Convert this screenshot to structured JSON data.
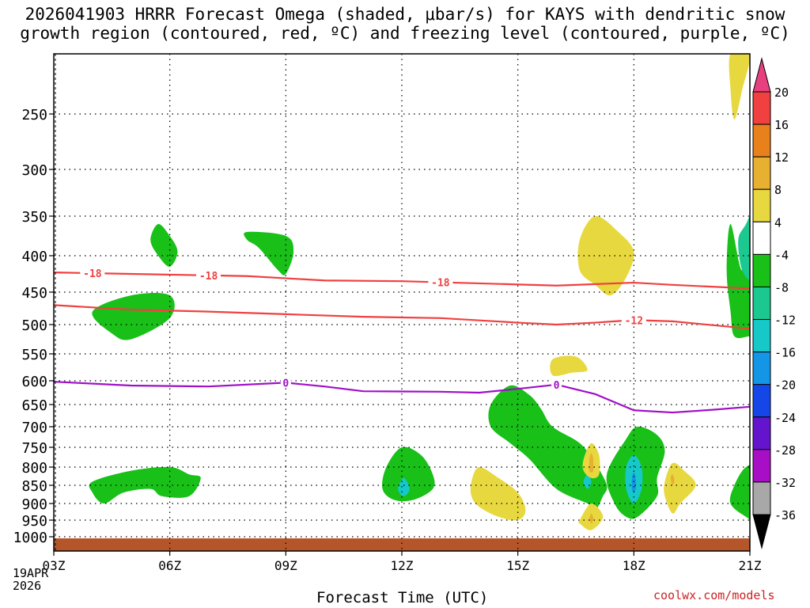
{
  "chart_data": {
    "type": "contour-timeseries",
    "title_line1": "2026041903 HRRR Forecast Omega (shaded, μbar/s) for KAYS with dendritic snow",
    "title_line2": "growth region (contoured, red, ºC) and freezing level (contoured, purple, ºC)",
    "xlabel": "Forecast Time (UTC)",
    "date_label": [
      "19APR",
      "2026"
    ],
    "credit": "coolwx.com/models",
    "x_ticks": [
      {
        "label": "03Z",
        "hour": 0
      },
      {
        "label": "06Z",
        "hour": 3
      },
      {
        "label": "09Z",
        "hour": 6
      },
      {
        "label": "12Z",
        "hour": 9
      },
      {
        "label": "15Z",
        "hour": 12
      },
      {
        "label": "18Z",
        "hour": 15
      },
      {
        "label": "21Z",
        "hour": 18
      }
    ],
    "y_ticks": [
      250,
      300,
      350,
      400,
      450,
      500,
      550,
      600,
      650,
      700,
      750,
      800,
      850,
      900,
      950,
      1000
    ],
    "ylim_hpa": [
      200,
      1030
    ],
    "colorbar": {
      "labels": [
        "20",
        "16",
        "12",
        "8",
        "4",
        "-4",
        "-8",
        "-12",
        "-16",
        "-20",
        "-24",
        "-28",
        "-32",
        "-36"
      ],
      "colors": [
        "#e8407e",
        "#f04040",
        "#e8801c",
        "#e8b030",
        "#e8d840",
        "#ffffff",
        "#18c018",
        "#1ac890",
        "#16c8c8",
        "#1496e6",
        "#1446e8",
        "#6414cc",
        "#a80ec6",
        "#a8a8a8",
        "#000000"
      ]
    },
    "contours": [
      {
        "name": "-18C",
        "color": "#f04040",
        "label": "-18",
        "points": [
          [
            0,
            423
          ],
          [
            2,
            425
          ],
          [
            5,
            428
          ],
          [
            7,
            434
          ],
          [
            9,
            435
          ],
          [
            11,
            438
          ],
          [
            13,
            441
          ],
          [
            15,
            437
          ],
          [
            16,
            440
          ],
          [
            18,
            445
          ]
        ],
        "label_positions": [
          1,
          4,
          10
        ]
      },
      {
        "name": "-12C",
        "color": "#f04040",
        "label": "-12",
        "points": [
          [
            0,
            470
          ],
          [
            2,
            477
          ],
          [
            4,
            480
          ],
          [
            6,
            484
          ],
          [
            8,
            488
          ],
          [
            10,
            490
          ],
          [
            12,
            497
          ],
          [
            13,
            500
          ],
          [
            14,
            497
          ],
          [
            15,
            493
          ],
          [
            16,
            495
          ],
          [
            18,
            507
          ]
        ],
        "label_positions": [
          15
        ]
      },
      {
        "name": "0C",
        "color": "#a010c8",
        "label": "0",
        "points": [
          [
            0,
            602
          ],
          [
            2,
            610
          ],
          [
            4,
            612
          ],
          [
            6,
            604
          ],
          [
            7,
            612
          ],
          [
            8,
            622
          ],
          [
            10,
            623
          ],
          [
            11,
            625
          ],
          [
            12,
            617
          ],
          [
            13,
            608
          ],
          [
            14,
            628
          ],
          [
            15,
            663
          ],
          [
            16,
            668
          ],
          [
            17,
            662
          ],
          [
            18,
            655
          ]
        ],
        "label_positions": [
          6,
          13
        ]
      }
    ],
    "omega_regions": [
      {
        "name": "green-0225",
        "color": "#18c018",
        "points": [
          [
            1,
            480
          ],
          [
            2,
            455
          ],
          [
            3,
            455
          ],
          [
            3,
            490
          ],
          [
            2,
            525
          ],
          [
            1.5,
            515
          ]
        ]
      },
      {
        "name": "green-0390",
        "color": "#18c018",
        "points": [
          [
            2.7,
            360
          ],
          [
            3,
            375
          ],
          [
            3.2,
            395
          ],
          [
            3,
            415
          ],
          [
            2.7,
            400
          ],
          [
            2.5,
            380
          ]
        ]
      },
      {
        "name": "green-0840",
        "color": "#18c018",
        "points": [
          [
            5,
            370
          ],
          [
            6,
            375
          ],
          [
            6.2,
            395
          ],
          [
            6,
            425
          ],
          [
            5.8,
            420
          ],
          [
            5.3,
            390
          ],
          [
            5,
            380
          ]
        ]
      },
      {
        "name": "green-0860",
        "color": "#18c018",
        "points": [
          [
            1,
            840
          ],
          [
            2,
            810
          ],
          [
            3,
            800
          ],
          [
            3.5,
            820
          ],
          [
            3.8,
            830
          ],
          [
            3.5,
            880
          ],
          [
            2.8,
            880
          ],
          [
            2.5,
            860
          ],
          [
            1.8,
            870
          ],
          [
            1.3,
            900
          ],
          [
            1,
            870
          ]
        ]
      },
      {
        "name": "green-1286",
        "color": "#18c018",
        "points": [
          [
            8.6,
            800
          ],
          [
            9,
            750
          ],
          [
            9.5,
            770
          ],
          [
            9.8,
            820
          ],
          [
            9.8,
            860
          ],
          [
            9.3,
            890
          ],
          [
            8.8,
            890
          ],
          [
            8.5,
            860
          ]
        ]
      },
      {
        "name": "cyan-1283",
        "color": "#16c8c8",
        "points": [
          [
            9.05,
            830
          ],
          [
            9.2,
            860
          ],
          [
            9.05,
            880
          ],
          [
            8.9,
            860
          ]
        ]
      },
      {
        "name": "green-1565",
        "color": "#18c018",
        "points": [
          [
            11.3,
            650
          ],
          [
            11.8,
            610
          ],
          [
            12.3,
            630
          ],
          [
            12.6,
            660
          ],
          [
            12.9,
            700
          ],
          [
            13.6,
            740
          ],
          [
            14,
            790
          ],
          [
            14.3,
            850
          ],
          [
            14.2,
            880
          ],
          [
            14,
            920
          ],
          [
            13.8,
            900
          ],
          [
            13,
            860
          ],
          [
            12.3,
            780
          ],
          [
            11.8,
            740
          ],
          [
            11.3,
            700
          ]
        ]
      },
      {
        "name": "cyan-1620",
        "color": "#16c8c8",
        "points": [
          [
            13.8,
            820
          ],
          [
            13.9,
            840
          ],
          [
            13.8,
            860
          ],
          [
            13.7,
            840
          ]
        ]
      },
      {
        "name": "green-1860",
        "color": "#18c018",
        "points": [
          [
            14.3,
            820
          ],
          [
            14.8,
            730
          ],
          [
            15.1,
            700
          ],
          [
            15.6,
            720
          ],
          [
            15.8,
            760
          ],
          [
            15.6,
            830
          ],
          [
            15.6,
            880
          ],
          [
            15.1,
            940
          ],
          [
            14.8,
            940
          ],
          [
            14.5,
            900
          ]
        ]
      },
      {
        "name": "cyan-1820",
        "color": "#16c8c8",
        "points": [
          [
            14.8,
            800
          ],
          [
            15,
            770
          ],
          [
            15.2,
            800
          ],
          [
            15.2,
            860
          ],
          [
            15,
            900
          ],
          [
            14.8,
            860
          ]
        ]
      },
      {
        "name": "blue-1820",
        "color": "#1496e6",
        "points": [
          [
            14.95,
            830
          ],
          [
            15,
            815
          ],
          [
            15.05,
            830
          ],
          [
            15.05,
            860
          ],
          [
            15,
            870
          ],
          [
            14.95,
            860
          ]
        ]
      },
      {
        "name": "green-2040",
        "color": "#18c018",
        "points": [
          [
            17.8,
            420
          ],
          [
            18,
            350
          ],
          [
            18.3,
            290
          ],
          [
            18.3,
            520
          ],
          [
            18,
            520
          ],
          [
            17.6,
            520
          ],
          [
            17.5,
            480
          ],
          [
            17.4,
            420
          ],
          [
            17.5,
            360
          ]
        ]
      },
      {
        "name": "teal-2040",
        "color": "#1ac890",
        "points": [
          [
            18.3,
            330
          ],
          [
            17.9,
            360
          ],
          [
            17.7,
            380
          ],
          [
            17.8,
            420
          ],
          [
            18.1,
            440
          ],
          [
            18.3,
            450
          ]
        ]
      },
      {
        "name": "green-2090",
        "color": "#18c018",
        "points": [
          [
            18.3,
            800
          ],
          [
            17.9,
            800
          ],
          [
            17.6,
            850
          ],
          [
            17.5,
            900
          ],
          [
            17.9,
            940
          ],
          [
            18.3,
            960
          ]
        ]
      },
      {
        "name": "cyan-2090",
        "color": "#16c8c8",
        "points": [
          [
            18.3,
            835
          ],
          [
            18.1,
            860
          ],
          [
            18.3,
            890
          ]
        ]
      },
      {
        "name": "yellow-2070",
        "color": "#e8d840",
        "points": [
          [
            17.5,
            200
          ],
          [
            18,
            200
          ],
          [
            17.8,
            230
          ],
          [
            17.6,
            255
          ],
          [
            17.5,
            230
          ]
        ]
      },
      {
        "name": "yellow-1690",
        "color": "#e8d840",
        "points": [
          [
            13.6,
            380
          ],
          [
            14,
            350
          ],
          [
            14.6,
            370
          ],
          [
            15,
            395
          ],
          [
            14.8,
            430
          ],
          [
            14.4,
            455
          ],
          [
            14,
            440
          ],
          [
            13.6,
            420
          ]
        ]
      },
      {
        "name": "yellow-1605",
        "color": "#e8d840",
        "points": [
          [
            12.9,
            560
          ],
          [
            13.5,
            555
          ],
          [
            13.8,
            580
          ],
          [
            13.4,
            585
          ],
          [
            12.9,
            590
          ]
        ]
      },
      {
        "name": "yellow-1410",
        "color": "#e8d840",
        "points": [
          [
            10.8,
            840
          ],
          [
            11,
            800
          ],
          [
            11.5,
            830
          ],
          [
            12,
            870
          ],
          [
            12.2,
            920
          ],
          [
            12,
            950
          ],
          [
            11.5,
            940
          ],
          [
            11,
            910
          ],
          [
            10.8,
            880
          ]
        ]
      },
      {
        "name": "yellow-1760",
        "color": "#e8d840",
        "points": [
          [
            13.7,
            780
          ],
          [
            13.9,
            740
          ],
          [
            14.1,
            770
          ],
          [
            14.1,
            820
          ],
          [
            13.9,
            830
          ],
          [
            13.7,
            810
          ]
        ]
      },
      {
        "name": "orange-1760",
        "color": "#e8b030",
        "points": [
          [
            13.85,
            780
          ],
          [
            13.9,
            765
          ],
          [
            13.95,
            780
          ],
          [
            13.95,
            810
          ],
          [
            13.9,
            815
          ],
          [
            13.85,
            810
          ]
        ]
      },
      {
        "name": "yellow-1765",
        "color": "#e8d840",
        "points": [
          [
            13.6,
            950
          ],
          [
            13.9,
            900
          ],
          [
            14.2,
            940
          ],
          [
            13.9,
            980
          ],
          [
            13.6,
            960
          ]
        ]
      },
      {
        "name": "orange-1765",
        "color": "#e8b030",
        "points": [
          [
            13.85,
            945
          ],
          [
            13.9,
            930
          ],
          [
            13.95,
            945
          ],
          [
            13.9,
            960
          ]
        ]
      },
      {
        "name": "yellow-1845",
        "color": "#e8d840",
        "points": [
          [
            15.8,
            840
          ],
          [
            16,
            790
          ],
          [
            16.3,
            810
          ],
          [
            16.6,
            850
          ],
          [
            16.2,
            900
          ],
          [
            16,
            930
          ],
          [
            15.8,
            880
          ]
        ]
      },
      {
        "name": "orange-1845",
        "color": "#e8b030",
        "points": [
          [
            15.95,
            830
          ],
          [
            16,
            820
          ],
          [
            16.05,
            835
          ],
          [
            16,
            850
          ]
        ]
      }
    ],
    "ground_color": "#b5552a"
  }
}
